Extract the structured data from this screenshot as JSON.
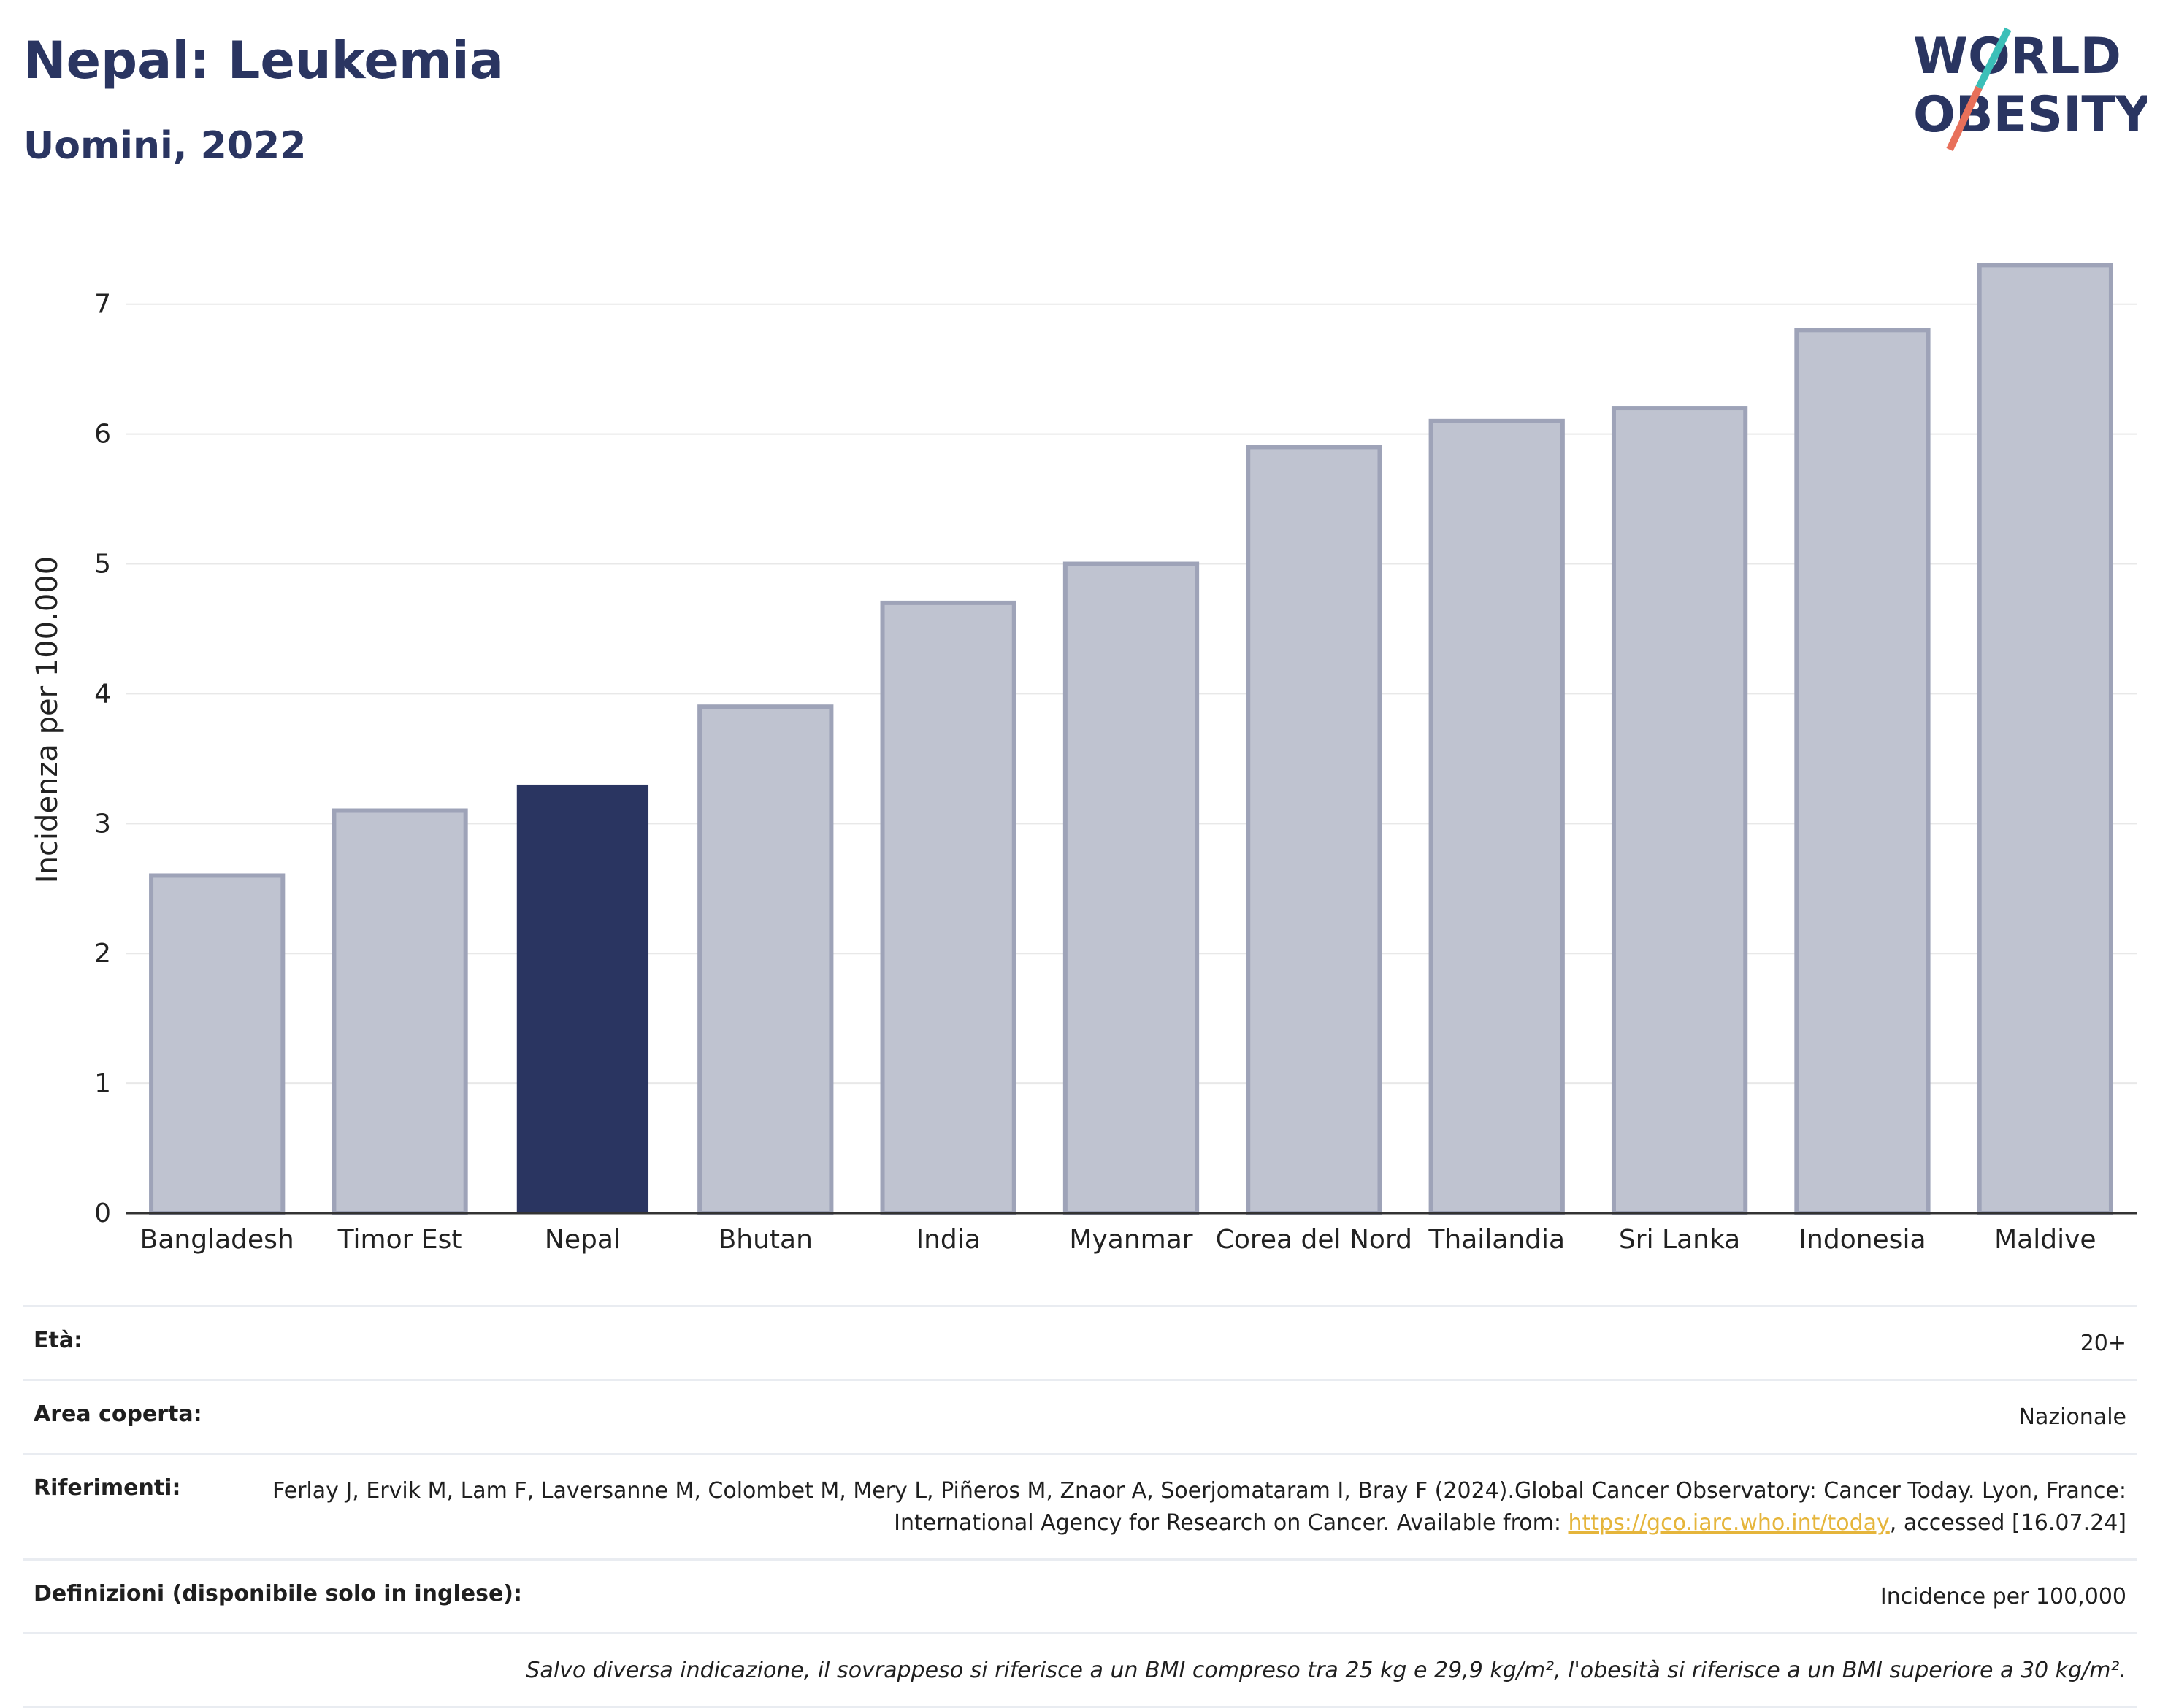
{
  "header": {
    "title": "Nepal: Leukemia",
    "subtitle": "Uomini, 2022",
    "logo_line1": "WORLD",
    "logo_line2": "OBESITY"
  },
  "colors": {
    "highlight": "#2a3561",
    "bar": "#bfc3d0",
    "bar_edge": "#9ea3b8",
    "grid": "#e8e8e8",
    "link": "#e5b53b",
    "logo_teal": "#3bbfb8",
    "logo_coral": "#e8705a"
  },
  "chart_data": {
    "type": "bar",
    "title": "Nepal: Leukemia",
    "subtitle": "Uomini, 2022",
    "xlabel": "",
    "ylabel": "Incidenza per 100.000",
    "categories": [
      "Bangladesh",
      "Timor Est",
      "Nepal",
      "Bhutan",
      "India",
      "Myanmar",
      "Corea del Nord",
      "Thailandia",
      "Sri Lanka",
      "Indonesia",
      "Maldive"
    ],
    "values": [
      2.6,
      3.1,
      3.3,
      3.9,
      4.7,
      5.0,
      5.9,
      6.1,
      6.2,
      6.8,
      7.3
    ],
    "highlight": "Nepal",
    "ylim": [
      0,
      7.6
    ],
    "yticks": [
      0,
      1,
      2,
      3,
      4,
      5,
      6,
      7
    ],
    "grid": true
  },
  "info": {
    "age_label": "Età:",
    "age_value": "20+",
    "area_label": "Area coperta:",
    "area_value": "Nazionale",
    "refs_label": "Riferimenti:",
    "refs_text": "Ferlay J, Ervik M, Lam F, Laversanne M, Colombet M, Mery L, Piñeros M, Znaor A, Soerjomataram I, Bray F (2024).Global Cancer Observatory: Cancer Today. Lyon, France: International Agency for Research on Cancer. Available from:",
    "refs_link": "https://gco.iarc.who.int/today",
    "refs_suffix": ", accessed [16.07.24]",
    "defs_label": "Definizioni (disponibile solo in inglese):",
    "defs_value": "Incidence per 100,000",
    "note": "Salvo diversa indicazione, il sovrappeso si riferisce a un BMI compreso tra 25 kg e 29,9 kg/m², l'obesità si riferisce a un BMI superiore a 30 kg/m²."
  }
}
